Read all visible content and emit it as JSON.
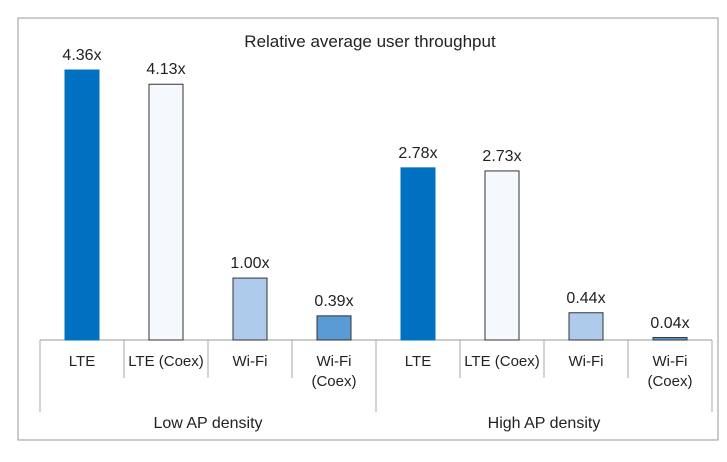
{
  "chart_data": {
    "type": "bar",
    "title": "Relative average user throughput",
    "categories": [
      "Low AP density",
      "High AP density"
    ],
    "series": [
      {
        "name": "LTE",
        "color": "#0070c0",
        "values": [
          4.36,
          2.78
        ],
        "value_labels": [
          "4.36x",
          "2.78x"
        ]
      },
      {
        "name": "LTE (Coex)",
        "color": "#f5f8fd",
        "values": [
          4.13,
          2.73
        ],
        "value_labels": [
          "4.13x",
          "2.73x"
        ]
      },
      {
        "name": "Wi-Fi",
        "color": "#aecbeb",
        "values": [
          1.0,
          0.44
        ],
        "value_labels": [
          "1.00x",
          "0.44x"
        ]
      },
      {
        "name": "Wi-Fi (Coex)",
        "color": "#5b9bd5",
        "values": [
          0.39,
          0.04
        ],
        "value_labels": [
          "0.39x",
          "0.04x"
        ]
      }
    ]
  }
}
